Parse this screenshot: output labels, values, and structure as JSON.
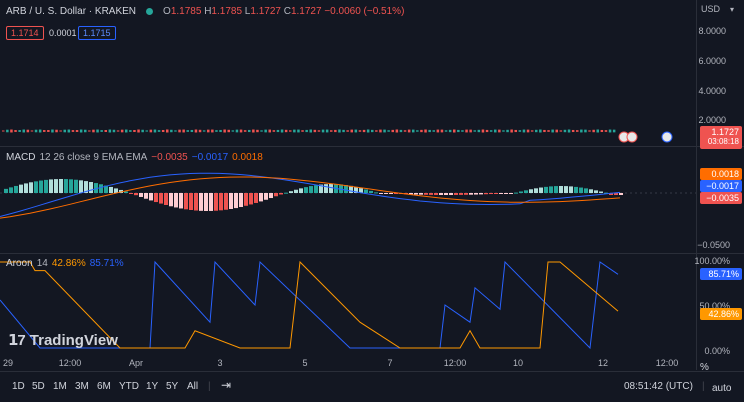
{
  "header": {
    "symbol": "ARB / U. S. Dollar · KRAKEN",
    "ohlc": {
      "o_label": "O",
      "o": "1.1785",
      "h_label": "H",
      "h": "1.1785",
      "l_label": "L",
      "l": "1.1727",
      "c_label": "C",
      "c": "1.1727",
      "change": "−0.0060 (−0.51%)"
    },
    "bid": "1.1714",
    "spread": "0.0001",
    "ask": "1.1715"
  },
  "price_axis": {
    "currency": "USD",
    "ticks": [
      "8.0000",
      "6.0000",
      "4.0000",
      "2.0000"
    ],
    "last_price": "1.1727",
    "countdown": "03:08:18"
  },
  "macd": {
    "label": "MACD",
    "params": "12 26 close 9 EMA EMA",
    "hist_value": "−0.0035",
    "macd_value": "−0.0017",
    "signal_value": "0.0018",
    "axis_ticks": [
      "−0.0500"
    ],
    "tag_signal": "0.0018",
    "tag_macd": "−0.0017",
    "tag_hist": "−0.0035"
  },
  "aroon": {
    "label": "Aroon",
    "period": "14",
    "down_value": "42.86%",
    "up_value": "85.71%",
    "axis_ticks": [
      "100.00%",
      "50.00%",
      "0.00%"
    ],
    "tag_up": "85.71%",
    "tag_down": "42.86%"
  },
  "watermark": "TradingView",
  "x_axis": [
    "29",
    "12:00",
    "Apr",
    "3",
    "5",
    "7",
    "12:00",
    "10",
    "12",
    "12:00"
  ],
  "bottom_bar": {
    "timeframes": [
      "1D",
      "5D",
      "1M",
      "3M",
      "6M",
      "YTD",
      "1Y",
      "5Y",
      "All"
    ],
    "time": "08:51:42 (UTC)",
    "scale_mode": "%",
    "auto": "auto"
  },
  "colors": {
    "background": "#131722",
    "up": "#26a69a",
    "down": "#ef5350",
    "macd_line": "#2962ff",
    "signal_line": "#ff6d00",
    "aroon_up": "#2962ff",
    "aroon_down": "#ff9800"
  }
}
